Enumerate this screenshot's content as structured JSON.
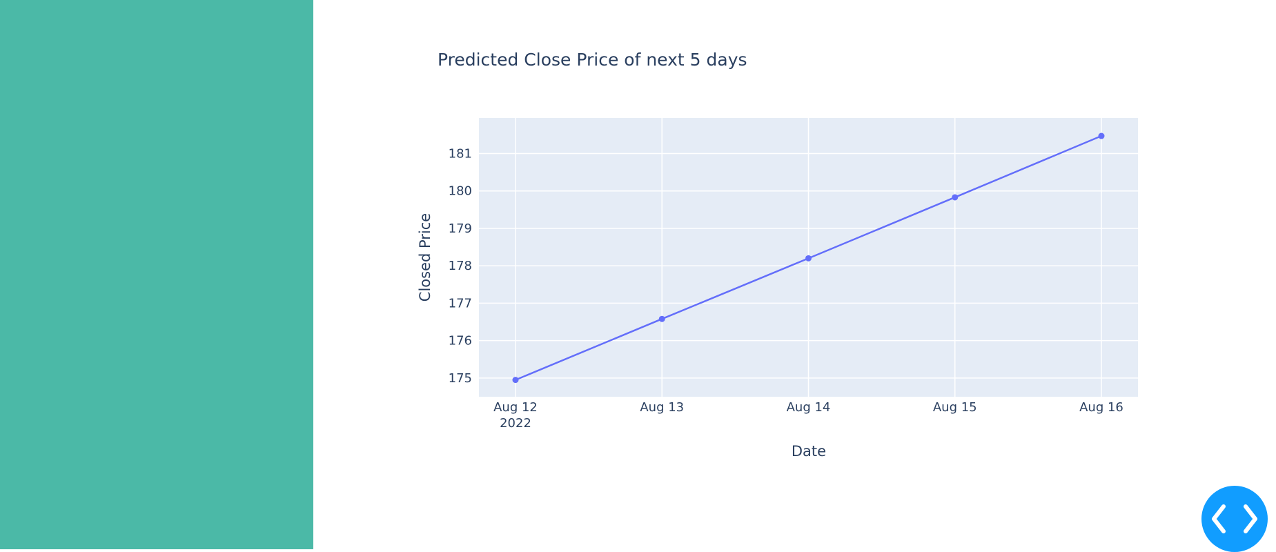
{
  "colors": {
    "sidebar": "#4bb9a7",
    "plot_bg": "#e5ecf6",
    "grid": "#ffffff",
    "line": "#636efa",
    "text": "#2a3f5f",
    "fab": "#119dff"
  },
  "fab": {
    "icon": "code-brackets-icon"
  },
  "chart_data": {
    "type": "line",
    "title": "Predicted Close Price of next 5 days",
    "xlabel": "Date",
    "ylabel": "Closed Price",
    "x": [
      "2022-08-12",
      "2022-08-13",
      "2022-08-14",
      "2022-08-15",
      "2022-08-16"
    ],
    "x_tick_labels": [
      "Aug 12",
      "Aug 13",
      "Aug 14",
      "Aug 15",
      "Aug 16"
    ],
    "x_tick_year": "2022",
    "y_ticks": [
      175,
      176,
      177,
      178,
      179,
      180,
      181
    ],
    "ylim": [
      174.5,
      181.95
    ],
    "series": [
      {
        "values": [
          174.95,
          176.58,
          178.2,
          179.83,
          181.47
        ]
      }
    ],
    "markers": true,
    "grid": true,
    "legend": false
  }
}
